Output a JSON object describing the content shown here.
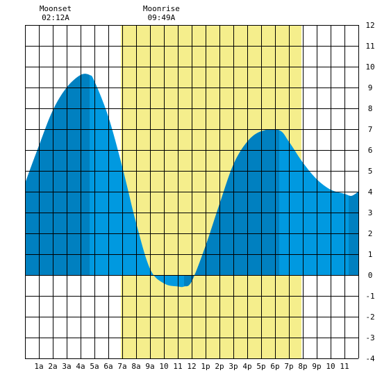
{
  "chart_data": {
    "type": "area",
    "title": "",
    "xlabel": "",
    "ylabel": "",
    "xlim": [
      0,
      24
    ],
    "ylim": [
      -4,
      12
    ],
    "grid": true,
    "x_tick_labels": [
      "1a",
      "2a",
      "3a",
      "4a",
      "5a",
      "6a",
      "7a",
      "8a",
      "9a",
      "10",
      "11",
      "12",
      "1p",
      "2p",
      "3p",
      "4p",
      "5p",
      "6p",
      "7p",
      "8p",
      "9p",
      "10",
      "11"
    ],
    "y_tick_labels": [
      "-4",
      "-3",
      "-2",
      "-1",
      "0",
      "1",
      "2",
      "3",
      "4",
      "5",
      "6",
      "7",
      "8",
      "9",
      "10",
      "11",
      "12"
    ],
    "annotations": [
      {
        "name": "moonset",
        "label": "Moonset",
        "time": "02:12A",
        "x": 2.2
      },
      {
        "name": "moonrise",
        "label": "Moonrise",
        "time": "09:49A",
        "x": 9.82
      }
    ],
    "daylight_window": [
      6.9,
      19.9
    ],
    "series": [
      {
        "x": [
          0,
          1,
          2,
          3,
          4,
          4.65,
          5,
          6,
          7,
          8,
          9,
          10,
          11,
          11.45,
          12,
          13,
          14,
          15,
          16,
          17,
          18.3,
          19,
          20,
          21,
          22,
          23,
          23.5,
          24
        ],
        "values": [
          4.4,
          6.2,
          7.9,
          9.0,
          9.6,
          9.6,
          9.3,
          7.6,
          5.2,
          2.5,
          0.3,
          -0.4,
          -0.55,
          -0.55,
          -0.3,
          1.4,
          3.4,
          5.3,
          6.4,
          6.9,
          6.95,
          6.4,
          5.4,
          4.6,
          4.1,
          3.9,
          3.8,
          4.0
        ]
      }
    ],
    "extremes": [
      {
        "kind": "high",
        "x": 4.65,
        "value": 9.6
      },
      {
        "kind": "low",
        "x": 11.45,
        "value": -0.55
      },
      {
        "kind": "high",
        "x": 18.3,
        "value": 6.95
      },
      {
        "kind": "low",
        "x": 23.3,
        "value": 3.8
      }
    ],
    "colors": {
      "water": "#0099E0",
      "water_dark": "#0080C0",
      "daylight": "#F5EE8C",
      "grid": "#000000",
      "background": "#ffffff"
    }
  }
}
